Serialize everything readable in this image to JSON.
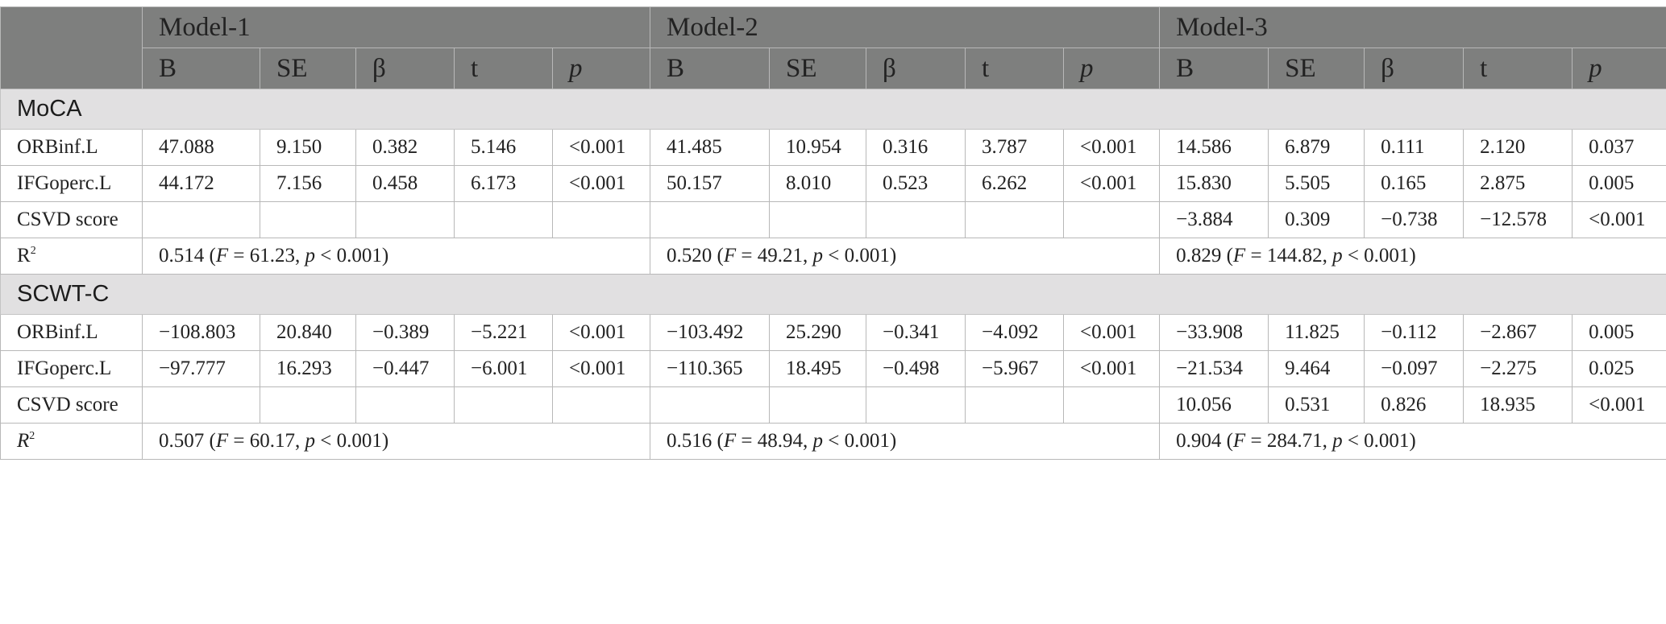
{
  "header": {
    "models": [
      "Model-1",
      "Model-2",
      "Model-3"
    ],
    "stats": [
      "B",
      "SE",
      "β",
      "t",
      "p"
    ]
  },
  "sections": [
    {
      "title": "MoCA",
      "rows": [
        {
          "label": "ORBinf.L",
          "cells": [
            "47.088",
            "9.150",
            "0.382",
            "5.146",
            "<0.001",
            "41.485",
            "10.954",
            "0.316",
            "3.787",
            "<0.001",
            "14.586",
            "6.879",
            "0.111",
            "2.120",
            "0.037"
          ]
        },
        {
          "label": "IFGoperc.L",
          "cells": [
            "44.172",
            "7.156",
            "0.458",
            "6.173",
            "<0.001",
            "50.157",
            "8.010",
            "0.523",
            "6.262",
            "<0.001",
            "15.830",
            "5.505",
            "0.165",
            "2.875",
            "0.005"
          ]
        },
        {
          "label": "CSVD score",
          "cells": [
            "",
            "",
            "",
            "",
            "",
            "",
            "",
            "",
            "",
            "",
            "−3.884",
            "0.309",
            "−0.738",
            "−12.578",
            "<0.001"
          ]
        }
      ],
      "r2": {
        "label": "R",
        "label_sup": "2",
        "values": [
          {
            "value": "0.514",
            "F": "61.23",
            "p": "0.001"
          },
          {
            "value": "0.520",
            "F": "49.21",
            "p": "0.001"
          },
          {
            "value": "0.829",
            "F": "144.82",
            "p": "0.001"
          }
        ]
      }
    },
    {
      "title": "SCWT-C",
      "rows": [
        {
          "label": "ORBinf.L",
          "cells": [
            "−108.803",
            "20.840",
            "−0.389",
            "−5.221",
            "<0.001",
            "−103.492",
            "25.290",
            "−0.341",
            "−4.092",
            "<0.001",
            "−33.908",
            "11.825",
            "−0.112",
            "−2.867",
            "0.005"
          ]
        },
        {
          "label": "IFGoperc.L",
          "cells": [
            "−97.777",
            "16.293",
            "−0.447",
            "−6.001",
            "<0.001",
            "−110.365",
            "18.495",
            "−0.498",
            "−5.967",
            "<0.001",
            "−21.534",
            "9.464",
            "−0.097",
            "−2.275",
            "0.025"
          ]
        },
        {
          "label": "CSVD score",
          "cells": [
            "",
            "",
            "",
            "",
            "",
            "",
            "",
            "",
            "",
            "",
            "10.056",
            "0.531",
            "0.826",
            "18.935",
            "<0.001"
          ]
        }
      ],
      "r2": {
        "label": "R",
        "label_sup": "2",
        "values": [
          {
            "value": "0.507",
            "F": "60.17",
            "p": "0.001"
          },
          {
            "value": "0.516",
            "F": "48.94",
            "p": "0.001"
          },
          {
            "value": "0.904",
            "F": "284.71",
            "p": "0.001"
          }
        ]
      }
    }
  ],
  "r2_format": {
    "F_symbol": "F",
    "p_symbol": "p",
    "equals": " = ",
    "less_than": " < "
  }
}
